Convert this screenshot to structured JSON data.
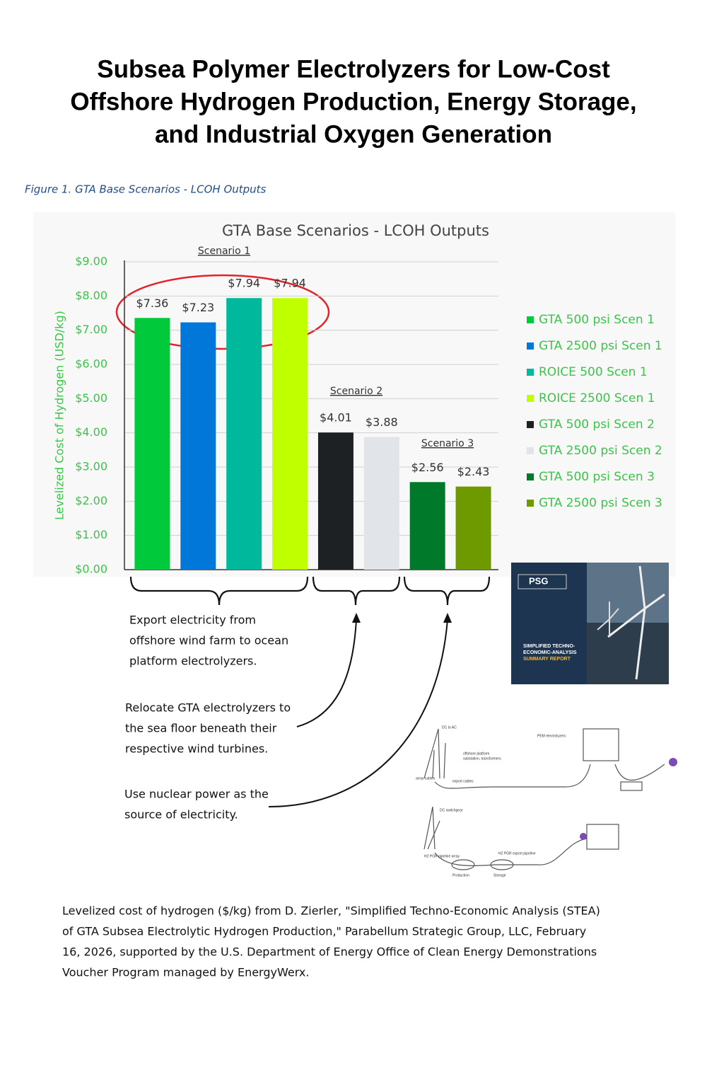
{
  "title_lines": [
    "Subsea Polymer Electrolyzers for Low-Cost",
    "Offshore Hydrogen Production, Energy Storage,",
    "and Industrial Oxygen Generation"
  ],
  "figure_caption": "Figure 1. GTA Base Scenarios - LCOH Outputs",
  "chart_data": {
    "type": "bar",
    "title": "GTA Base Scenarios - LCOH Outputs",
    "y_label": "Levelized Cost of Hydrogen (USD/kg)",
    "ylim": [
      0,
      9
    ],
    "yticks": [
      {
        "value": 0,
        "label": "$0.00"
      },
      {
        "value": 1,
        "label": "$1.00"
      },
      {
        "value": 2,
        "label": "$2.00"
      },
      {
        "value": 3,
        "label": "$3.00"
      },
      {
        "value": 4,
        "label": "$4.00"
      },
      {
        "value": 5,
        "label": "$5.00"
      },
      {
        "value": 6,
        "label": "$6.00"
      },
      {
        "value": 7,
        "label": "$7.00"
      },
      {
        "value": 8,
        "label": "$8.00"
      },
      {
        "value": 9,
        "label": "$9.00"
      }
    ],
    "grid": true,
    "legend": "right",
    "series": [
      {
        "name": "GTA 500 psi Scen 1",
        "color": "#00c93c",
        "values": [
          7.36
        ],
        "value_labels": [
          "$7.36"
        ]
      },
      {
        "name": "GTA 2500 psi Scen 1",
        "color": "#0077d9",
        "values": [
          7.23
        ],
        "value_labels": [
          "$7.23"
        ]
      },
      {
        "name": "ROICE 500 Scen 1",
        "color": "#00b89c",
        "values": [
          7.94
        ],
        "value_labels": [
          "$7.94"
        ]
      },
      {
        "name": "ROICE 2500 Scen 1",
        "color": "#bfff00",
        "values": [
          7.94
        ],
        "value_labels": [
          "$7.94"
        ]
      },
      {
        "name": "GTA 500 psi Scen 2",
        "color": "#1e2124",
        "values": [
          4.01
        ],
        "value_labels": [
          "$4.01"
        ]
      },
      {
        "name": "GTA 2500 psi Scen 2",
        "color": "#e1e4e8",
        "values": [
          3.88
        ],
        "value_labels": [
          "$3.88"
        ]
      },
      {
        "name": "GTA 500 psi Scen 3",
        "color": "#007a2a",
        "values": [
          2.56
        ],
        "value_labels": [
          "$2.56"
        ]
      },
      {
        "name": "GTA 2500 psi Scen 3",
        "color": "#6e9a00",
        "values": [
          2.43
        ],
        "value_labels": [
          "$2.43"
        ]
      }
    ],
    "annotations": [
      "Scenario 1",
      "Scenario 2",
      "Scenario 3"
    ]
  },
  "notes": [
    [
      "Export electricity from",
      "offshore wind farm to ocean",
      "platform electrolyzers."
    ],
    [
      "Relocate GTA electrolyzers to",
      "the sea floor beneath their",
      "respective wind turbines."
    ],
    [
      "Use nuclear power as the",
      "source of electricity."
    ]
  ],
  "report_cover": {
    "brand": "PSG",
    "title_lines": [
      "SIMPLIFIED TECHNO-",
      "ECONOMIC-ANALYSIS",
      "SUMMARY REPORT"
    ]
  },
  "diagram_labels": [
    "DC to AC",
    "PEM electrolyzers",
    "offshore platform",
    "substation, transformers",
    "array cables",
    "export cables",
    "DC switchgear",
    "H2 PGR pipeline array",
    "H2 PGR export pipeline",
    "Production",
    "Storage"
  ],
  "footnote_lines": [
    "Levelized cost of hydrogen ($/kg) from D. Zierler, \"Simplified Techno-Economic Analysis (STEA)",
    "of GTA Subsea Electrolytic Hydrogen Production,\" Parabellum Strategic Group, LLC, February",
    "16, 2026, supported by the U.S. Department of Energy Office of Clean Energy Demonstrations",
    "Voucher Program managed by EnergyWerx."
  ]
}
